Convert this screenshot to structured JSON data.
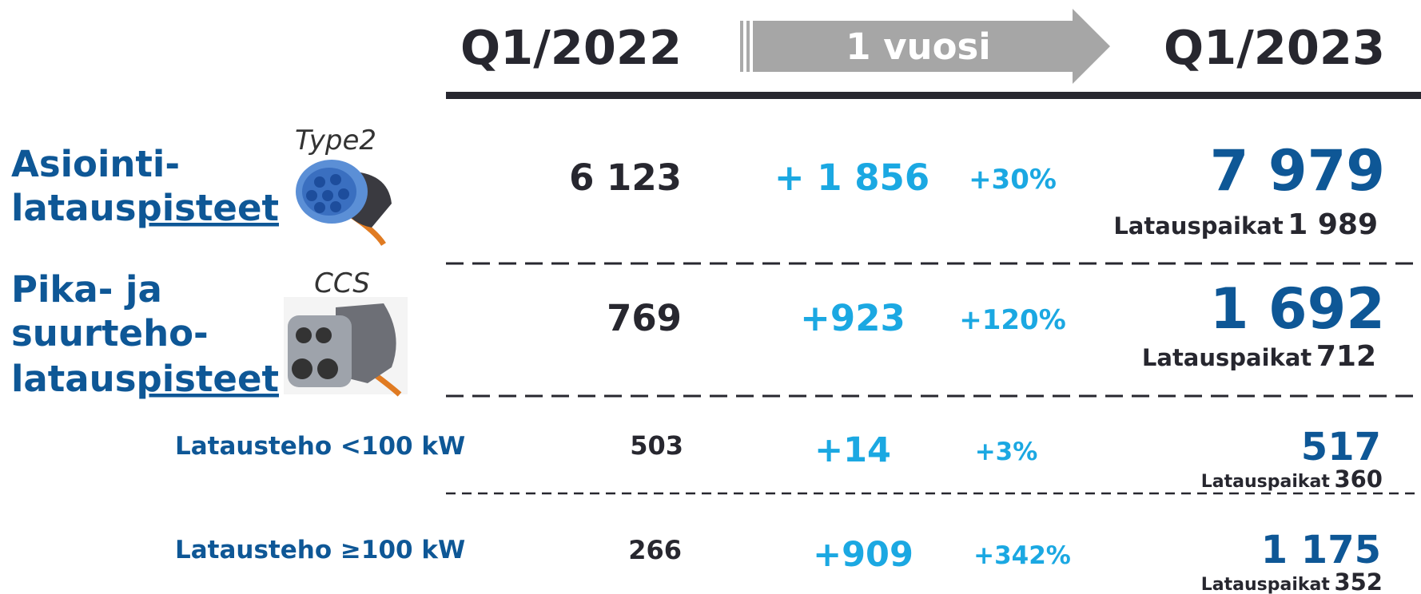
{
  "header": {
    "period_start": "Q1/2022",
    "arrow_label": "1 vuosi",
    "period_end": "Q1/2023"
  },
  "rows": [
    {
      "label_lines": [
        "Asiointi-"
      ],
      "label_last": "lataus",
      "label_underlined": "pisteet",
      "connector": "Type2",
      "start": "6 123",
      "change": "+ 1 856",
      "change_pct": "+30%",
      "end": "7 979",
      "sites_label": "Latauspaikat",
      "sites": "1 989"
    },
    {
      "label_lines": [
        "Pika- ja",
        "suurteho-"
      ],
      "label_last": "lataus",
      "label_underlined": "pisteet",
      "connector": "CCS",
      "start": "769",
      "change": "+923",
      "change_pct": "+120%",
      "end": "1 692",
      "sites_label": "Latauspaikat",
      "sites": "712"
    }
  ],
  "sub_rows": [
    {
      "label": "Latausteho <100 kW",
      "start": "503",
      "change": "+14",
      "change_pct": "+3%",
      "end": "517",
      "sites_label": "Latauspaikat",
      "sites": "360"
    },
    {
      "label": "Latausteho ≥100 kW",
      "start": "266",
      "change": "+909",
      "change_pct": "+342%",
      "end": "1 175",
      "sites_label": "Latauspaikat",
      "sites": "352"
    }
  ]
}
